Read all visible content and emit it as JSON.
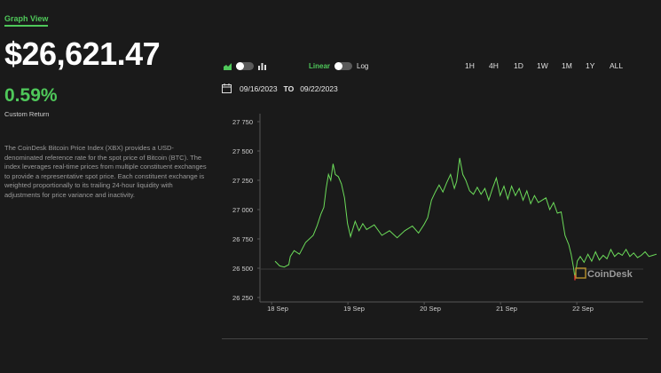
{
  "header": {
    "graph_view_tab": "Graph View",
    "price": "$26,621.47",
    "return_pct": "0.59%",
    "return_label": "Custom Return",
    "description": "The CoinDesk Bitcoin Price Index (XBX) provides a USD-denominated reference rate for the spot price of Bitcoin (BTC). The index leverages real-time prices from multiple constituent exchanges to provide a representative spot price. Each constituent exchange is weighted proportionally to its trailing 24-hour liquidity with adjustments for price variance and inactivity."
  },
  "controls": {
    "scale_linear": "Linear",
    "scale_log": "Log",
    "ranges": [
      "1H",
      "4H",
      "1D",
      "1W",
      "1M",
      "1Y",
      "ALL"
    ],
    "date_from": "09/16/2023",
    "date_to_word": "TO",
    "date_to": "09/22/2023"
  },
  "watermark": "CoinDesk",
  "colors": {
    "accent": "#4fc85a",
    "line": "#6cdc5a",
    "low_marker": "#e03030",
    "background": "#1a1a1a"
  },
  "chart_data": {
    "type": "line",
    "x_ticks": [
      "18 Sep",
      "19 Sep",
      "20 Sep",
      "21 Sep",
      "22 Sep"
    ],
    "y_ticks": [
      "27 750",
      "27 500",
      "27 250",
      "27 000",
      "26 750",
      "26 500",
      "26 250"
    ],
    "ylim": [
      26250,
      27750
    ],
    "xlim": [
      0,
      5
    ],
    "grid": false,
    "series": [
      {
        "values": [
          [
            0.0,
            26560
          ],
          [
            0.06,
            26520
          ],
          [
            0.12,
            26510
          ],
          [
            0.18,
            26530
          ],
          [
            0.2,
            26600
          ],
          [
            0.25,
            26650
          ],
          [
            0.32,
            26620
          ],
          [
            0.4,
            26720
          ],
          [
            0.5,
            26780
          ],
          [
            0.55,
            26860
          ],
          [
            0.6,
            26960
          ],
          [
            0.64,
            27020
          ],
          [
            0.67,
            27180
          ],
          [
            0.7,
            27300
          ],
          [
            0.73,
            27250
          ],
          [
            0.76,
            27390
          ],
          [
            0.79,
            27300
          ],
          [
            0.83,
            27280
          ],
          [
            0.87,
            27220
          ],
          [
            0.91,
            27100
          ],
          [
            0.95,
            26880
          ],
          [
            0.99,
            26770
          ],
          [
            1.05,
            26900
          ],
          [
            1.1,
            26820
          ],
          [
            1.15,
            26880
          ],
          [
            1.2,
            26830
          ],
          [
            1.3,
            26870
          ],
          [
            1.4,
            26780
          ],
          [
            1.5,
            26820
          ],
          [
            1.6,
            26760
          ],
          [
            1.7,
            26820
          ],
          [
            1.8,
            26860
          ],
          [
            1.88,
            26800
          ],
          [
            1.95,
            26870
          ],
          [
            2.0,
            26930
          ],
          [
            2.05,
            27080
          ],
          [
            2.1,
            27150
          ],
          [
            2.15,
            27210
          ],
          [
            2.2,
            27150
          ],
          [
            2.25,
            27230
          ],
          [
            2.3,
            27300
          ],
          [
            2.35,
            27180
          ],
          [
            2.38,
            27240
          ],
          [
            2.42,
            27440
          ],
          [
            2.46,
            27300
          ],
          [
            2.5,
            27250
          ],
          [
            2.55,
            27160
          ],
          [
            2.6,
            27130
          ],
          [
            2.65,
            27190
          ],
          [
            2.7,
            27130
          ],
          [
            2.75,
            27180
          ],
          [
            2.8,
            27080
          ],
          [
            2.85,
            27180
          ],
          [
            2.9,
            27270
          ],
          [
            2.95,
            27120
          ],
          [
            3.0,
            27200
          ],
          [
            3.05,
            27090
          ],
          [
            3.1,
            27200
          ],
          [
            3.15,
            27120
          ],
          [
            3.2,
            27180
          ],
          [
            3.25,
            27080
          ],
          [
            3.3,
            27160
          ],
          [
            3.35,
            27050
          ],
          [
            3.4,
            27120
          ],
          [
            3.45,
            27060
          ],
          [
            3.5,
            27080
          ],
          [
            3.55,
            27100
          ],
          [
            3.6,
            27000
          ],
          [
            3.65,
            27060
          ],
          [
            3.7,
            26970
          ],
          [
            3.75,
            26980
          ],
          [
            3.8,
            26780
          ],
          [
            3.85,
            26700
          ],
          [
            3.88,
            26620
          ],
          [
            3.91,
            26510
          ],
          [
            3.93,
            26420
          ],
          [
            3.96,
            26560
          ],
          [
            4.0,
            26600
          ],
          [
            4.05,
            26550
          ],
          [
            4.1,
            26620
          ],
          [
            4.15,
            26560
          ],
          [
            4.2,
            26640
          ],
          [
            4.25,
            26570
          ],
          [
            4.3,
            26610
          ],
          [
            4.35,
            26580
          ],
          [
            4.4,
            26660
          ],
          [
            4.45,
            26600
          ],
          [
            4.5,
            26630
          ],
          [
            4.55,
            26610
          ],
          [
            4.6,
            26660
          ],
          [
            4.65,
            26600
          ],
          [
            4.7,
            26630
          ],
          [
            4.75,
            26590
          ],
          [
            4.8,
            26610
          ],
          [
            4.85,
            26640
          ],
          [
            4.9,
            26600
          ],
          [
            4.95,
            26610
          ],
          [
            5.0,
            26620
          ]
        ]
      }
    ],
    "low_point": [
      3.93,
      26420
    ]
  }
}
